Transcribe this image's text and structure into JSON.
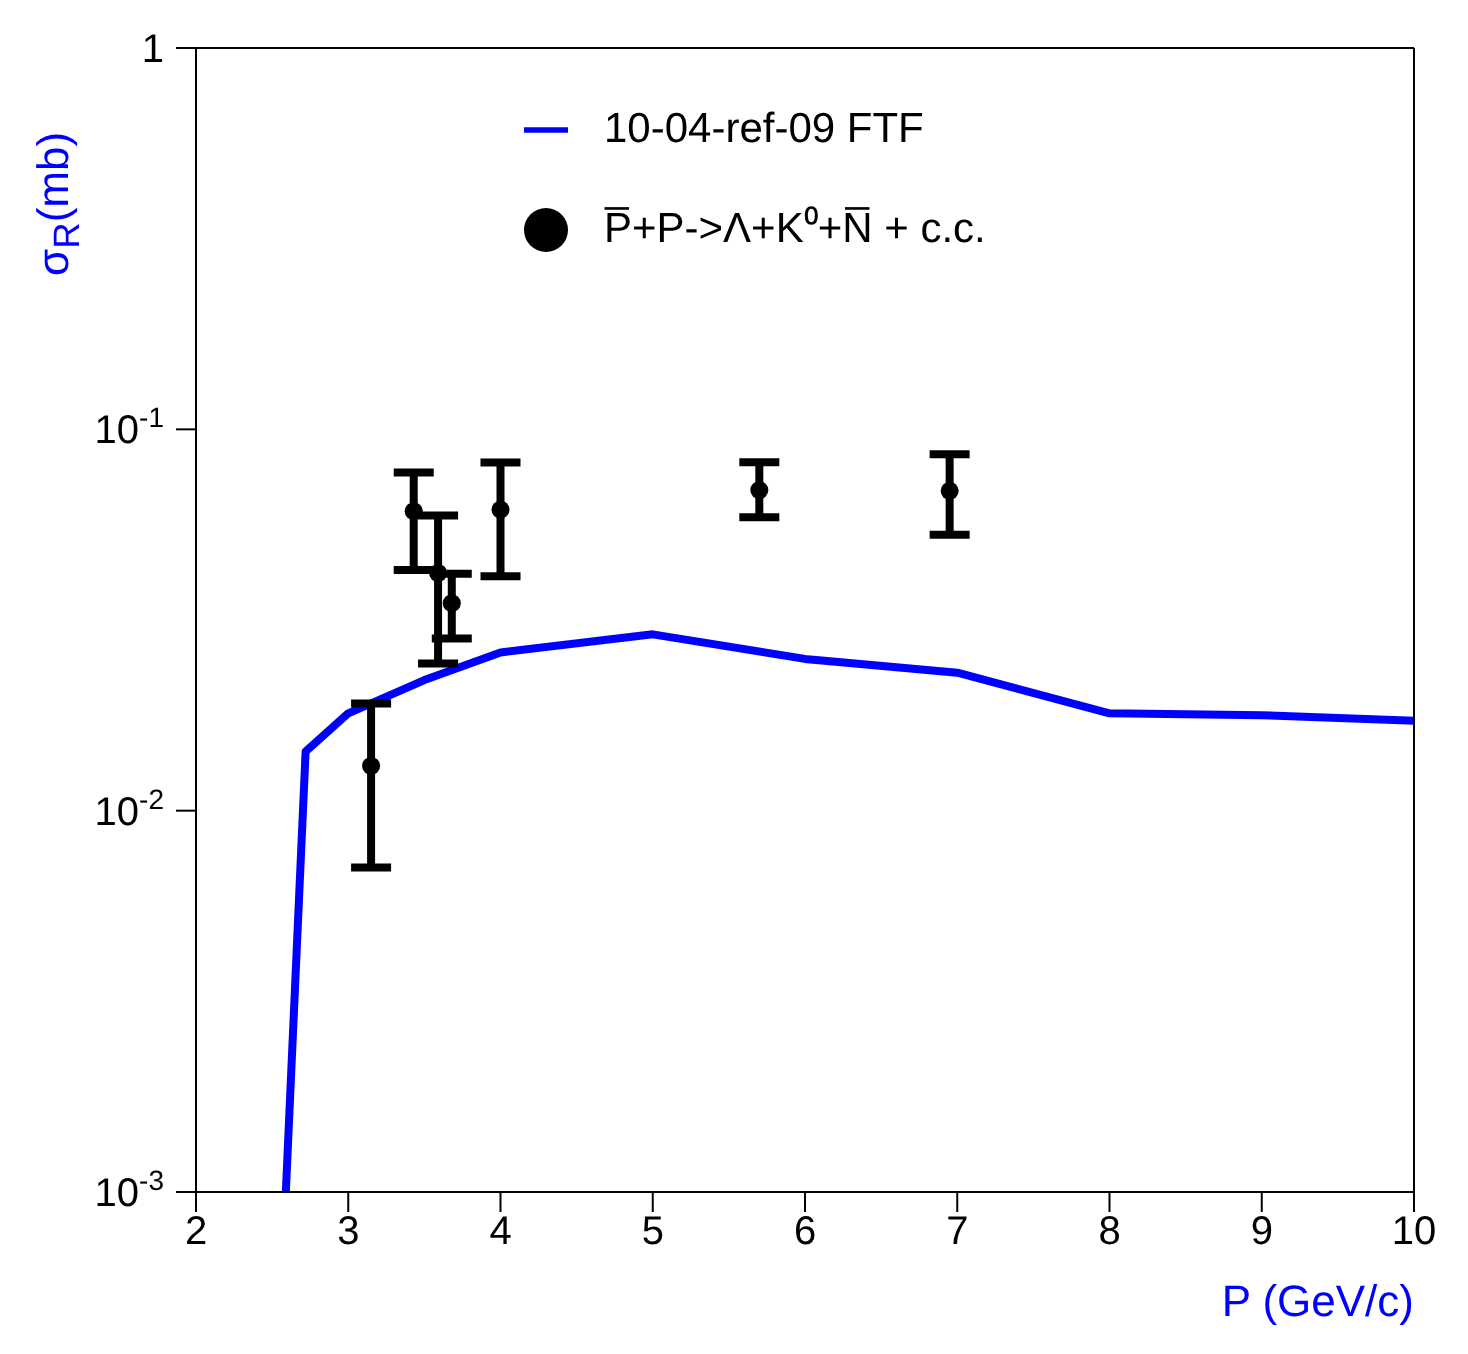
{
  "chart_data": {
    "type": "line",
    "xlabel": "P (GeV/c)",
    "ylabel": "σ$_{R}$(mb)",
    "xlim": [
      2,
      10
    ],
    "xticks": [
      2,
      3,
      4,
      5,
      6,
      7,
      8,
      9,
      10
    ],
    "ylim": [
      0.001,
      1
    ],
    "yticks": [
      {
        "value": 0.001,
        "label": "10$^{-3}$"
      },
      {
        "value": 0.01,
        "label": "10$^{-2}$"
      },
      {
        "value": 0.1,
        "label": "10$^{-1}$"
      },
      1
    ],
    "log": "y",
    "grid": false,
    "legend": "top right",
    "series": [
      {
        "name": "10-04-ref-09 FTF",
        "type": "line",
        "color": "#0000ff",
        "line_style": "solid",
        "marker": "none",
        "x": [
          2.59,
          2.72,
          3.0,
          3.5,
          4.0,
          5.0,
          6.0,
          7.0,
          8.0,
          9.0,
          10.0
        ],
        "values": [
          0.001,
          0.0143,
          0.018,
          0.022,
          0.026,
          0.029,
          0.025,
          0.023,
          0.018,
          0.0178,
          0.0172
        ]
      },
      {
        "name": "P̅+P->Λ+K⁰+N̅ + c.c.",
        "type": "scatter",
        "color": "#000000",
        "marker": "circle",
        "x": [
          3.15,
          3.43,
          3.59,
          3.68,
          4.0,
          5.7,
          6.95
        ],
        "values": [
          0.0131,
          0.061,
          0.042,
          0.035,
          0.0616,
          0.0693,
          0.069
        ],
        "errors": [
          [
            0.0071,
            0.0191
          ],
          [
            0.0428,
            0.077
          ],
          [
            0.0243,
            0.0594
          ],
          [
            0.0283,
            0.0418
          ],
          [
            0.0412,
            0.0818
          ],
          [
            0.0588,
            0.082
          ],
          [
            0.0529,
            0.086
          ]
        ]
      }
    ]
  }
}
